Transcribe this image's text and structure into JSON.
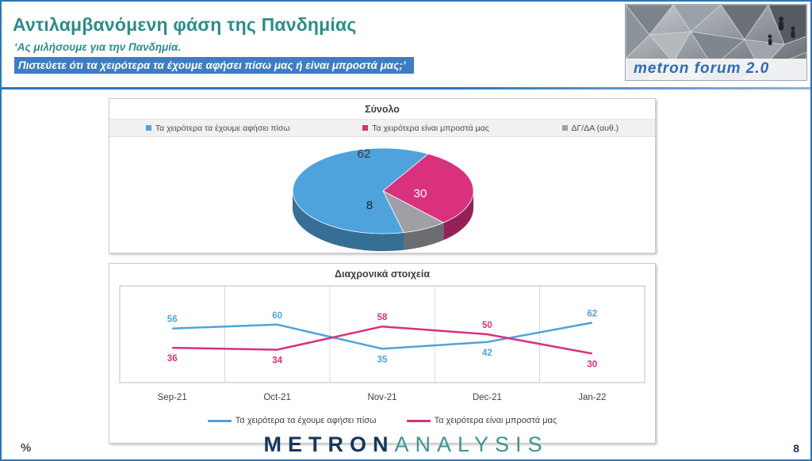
{
  "header": {
    "title": "Αντιλαμβανόμενη φάση της Πανδημίας",
    "subtitle_line1": "‘Ας μιλήσουμε για την Πανδημία.",
    "subtitle_line2": "Πιστεύετε ότι τα χειρότερα τα έχουμε αφήσει πίσω μας ή είναι μπροστά μας;’"
  },
  "logo": {
    "text": "metron forum 2.0"
  },
  "chart_data": [
    {
      "type": "pie",
      "style": "3d",
      "title": "Σύνολο",
      "labels": [
        "Τα χειρότερα τα έχουμε αφήσει πίσω",
        "Τα χειρότερα είναι μπροστά μας",
        "ΔΓ/ΔΑ (αυθ.)"
      ],
      "values": [
        62,
        30,
        8
      ],
      "colors": [
        "#4FA3DC",
        "#D9317E",
        "#9EA0A6"
      ],
      "legend_position": "top"
    },
    {
      "type": "line",
      "title": "Διαχρονικά στοιχεία",
      "categories": [
        "Sep-21",
        "Oct-21",
        "Nov-21",
        "Dec-21",
        "Jan-22"
      ],
      "series": [
        {
          "name": "Τα χειρότερα τα έχουμε αφήσει πίσω",
          "color": "#4FA3DC",
          "values": [
            56,
            60,
            35,
            42,
            62
          ]
        },
        {
          "name": "Τα χειρότερα είναι μπροστά μας",
          "color": "#D9317E",
          "values": [
            36,
            34,
            58,
            50,
            30
          ]
        }
      ],
      "ylim": [
        0,
        100
      ],
      "grid": "vertical",
      "legend_position": "bottom"
    }
  ],
  "footer": {
    "percent_label": "%",
    "brand_part1": "METRON",
    "brand_part2": "ANALYSIS",
    "page_number": "8"
  },
  "theme": {
    "title_teal": "#2C8C8C",
    "highlight_blue": "#3F7CC1",
    "border_blue": "#2E74B5",
    "navy": "#17365D",
    "logo_teal": "#3D9390"
  }
}
